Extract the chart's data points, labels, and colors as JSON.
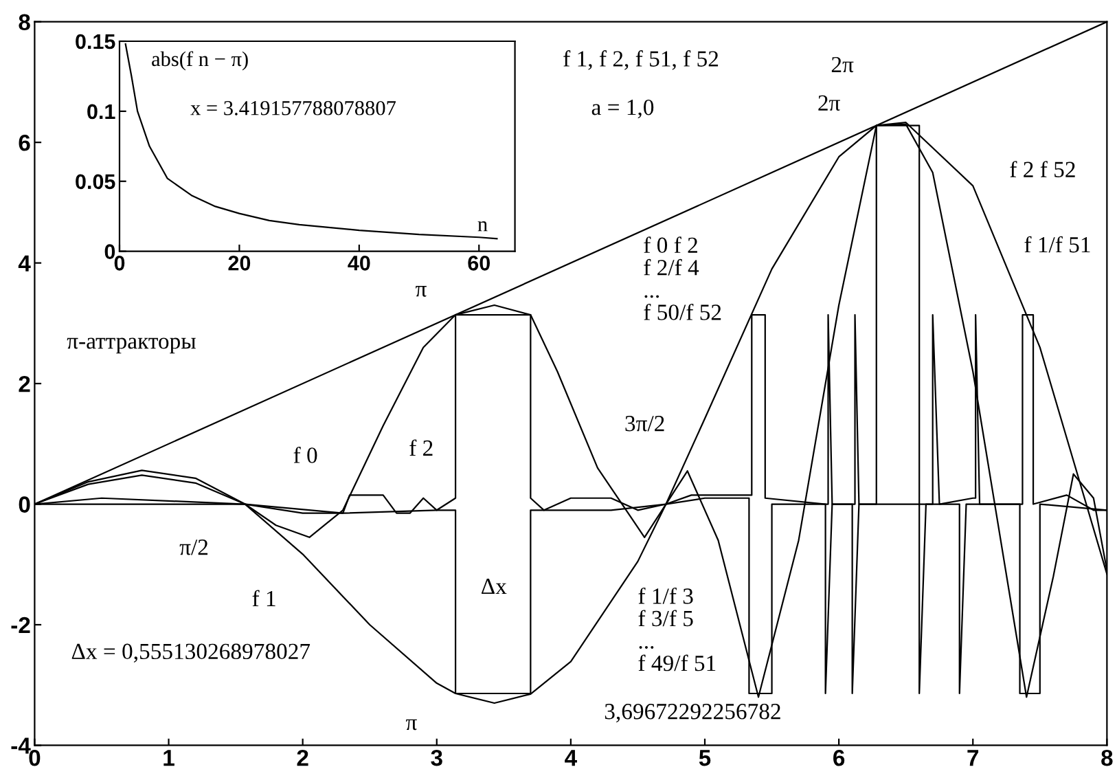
{
  "chart_data": [
    {
      "type": "line",
      "xlim": [
        0,
        8
      ],
      "ylim": [
        -4,
        8
      ],
      "xticks": [
        0,
        1,
        2,
        3,
        4,
        5,
        6,
        7,
        8
      ],
      "yticks": [
        -4,
        -2,
        0,
        2,
        4,
        6,
        8
      ],
      "series": [
        {
          "color": "#000000",
          "x": [
            0,
            8
          ],
          "values": [
            0,
            8
          ]
        },
        {
          "color": "#000000",
          "x": [
            0,
            0.4,
            0.8,
            1.2,
            1.57,
            2,
            2.5,
            3,
            3.14,
            3.43,
            3.7,
            4,
            4.5,
            4.71,
            5,
            5.5,
            6,
            6.28,
            6.5,
            7,
            7.5,
            8
          ],
          "values": [
            0,
            0.37,
            0.56,
            0.43,
            0,
            -0.83,
            -2.0,
            -2.97,
            -3.14,
            -3.3,
            -3.15,
            -2.61,
            -0.95,
            0,
            1.42,
            3.9,
            5.76,
            6.28,
            6.33,
            5.28,
            2.6,
            -1.16
          ]
        },
        {
          "color": "#000000",
          "x": [
            0,
            0.4,
            0.8,
            1.2,
            1.57,
            1.8,
            2.05,
            2.3,
            2.6,
            2.9,
            3.14,
            3.43,
            3.7,
            3.9,
            4.2,
            4.55,
            4.71,
            4.87,
            5.1,
            5.4,
            5.7,
            6.0,
            6.28,
            6.5,
            6.7,
            7.0,
            7.4,
            7.6,
            7.75,
            7.9,
            8
          ],
          "values": [
            0,
            0.33,
            0.48,
            0.35,
            0,
            -0.35,
            -0.55,
            -0.1,
            1.3,
            2.6,
            3.14,
            3.3,
            3.14,
            2.2,
            0.6,
            -0.55,
            0,
            0.55,
            -0.6,
            -3.2,
            -0.6,
            3.3,
            6.28,
            6.3,
            5.5,
            2.2,
            -3.2,
            -1.2,
            0.5,
            0.1,
            -1.1
          ]
        },
        {
          "color": "#000000",
          "x": [
            0,
            1.57,
            2.0,
            2.3,
            3.0,
            3.14,
            3.14,
            3.7,
            3.7,
            4.3,
            4.71,
            5.0,
            5.33,
            5.33,
            5.5,
            5.5,
            5.9,
            5.9,
            5.95,
            6.1,
            6.1,
            6.15,
            6.6,
            6.6,
            6.65,
            6.9,
            6.9,
            6.95,
            7.35,
            7.35,
            7.5,
            7.5,
            8
          ],
          "values": [
            0,
            0,
            -0.15,
            -0.15,
            -0.1,
            -0.1,
            -3.14,
            -3.14,
            -0.1,
            -0.1,
            0,
            0.1,
            0.1,
            -3.14,
            -3.14,
            0,
            0,
            -3.14,
            0,
            0,
            -3.14,
            0,
            0,
            -3.14,
            0,
            0,
            -3.14,
            0,
            0,
            -3.14,
            -3.14,
            0,
            -0.1
          ]
        },
        {
          "color": "#000000",
          "x": [
            0,
            0.5,
            1.57,
            2.3,
            2.35,
            2.6,
            2.7,
            2.8,
            2.9,
            3.0,
            3.14,
            3.14,
            3.7,
            3.7,
            3.8,
            4.0,
            4.3,
            4.5,
            4.71,
            4.9,
            5.3,
            5.35,
            5.35,
            5.45,
            5.45,
            5.9,
            5.92,
            5.92,
            5.95,
            6.1,
            6.12,
            6.12,
            6.15,
            6.28,
            6.28,
            6.6,
            6.6,
            6.7,
            6.7,
            6.75,
            7.0,
            7.02,
            7.02,
            7.05,
            7.35,
            7.37,
            7.37,
            7.45,
            7.45,
            7.7,
            7.9,
            8
          ],
          "values": [
            0,
            0.1,
            0,
            -0.15,
            0.15,
            0.15,
            -0.15,
            -0.15,
            0.1,
            -0.1,
            0.1,
            3.14,
            3.14,
            0.1,
            -0.1,
            0.1,
            0.1,
            -0.1,
            0,
            0.15,
            0.15,
            0.15,
            3.14,
            3.14,
            0.1,
            0,
            0,
            3.14,
            0,
            0,
            0,
            3.14,
            0,
            0,
            6.28,
            6.28,
            0,
            0,
            3.14,
            0,
            0.1,
            0.1,
            3.14,
            0,
            0,
            0,
            3.14,
            3.14,
            0,
            0.15,
            -0.1,
            -0.1
          ]
        }
      ],
      "annotations": [
        "f 1, f 2, f 51, f 52",
        "a = 1,0",
        "2π",
        "2π",
        "π",
        "π-аттракторы",
        "f 0",
        "f 2",
        "π/2",
        "f 1",
        "Δx",
        "Δx = 0,555130268978027",
        "π",
        "3,69672292256782",
        "f 0 f 2\nf 2/f 4\n...\nf 50/f 52",
        "3π/2",
        "f 1/f 3\nf 3/f 5\n...\nf 49/f 51",
        "f 2 f 52",
        "f 1/f 51"
      ]
    },
    {
      "type": "line",
      "xlim": [
        0,
        66
      ],
      "ylim": [
        0,
        0.15
      ],
      "xticks": [
        0,
        20,
        40,
        60
      ],
      "yticks": [
        0,
        0.05,
        0.1,
        0.15
      ],
      "series": [
        {
          "color": "#000000",
          "x": [
            1,
            2,
            3,
            5,
            8,
            12,
            16,
            20,
            25,
            30,
            40,
            50,
            60,
            63
          ],
          "values": [
            0.148,
            0.125,
            0.1,
            0.075,
            0.052,
            0.04,
            0.032,
            0.027,
            0.022,
            0.019,
            0.015,
            0.012,
            0.01,
            0.009
          ]
        }
      ],
      "annotations": [
        "abs(f n − π)",
        "x = 3.419157788078807",
        "n"
      ]
    }
  ]
}
